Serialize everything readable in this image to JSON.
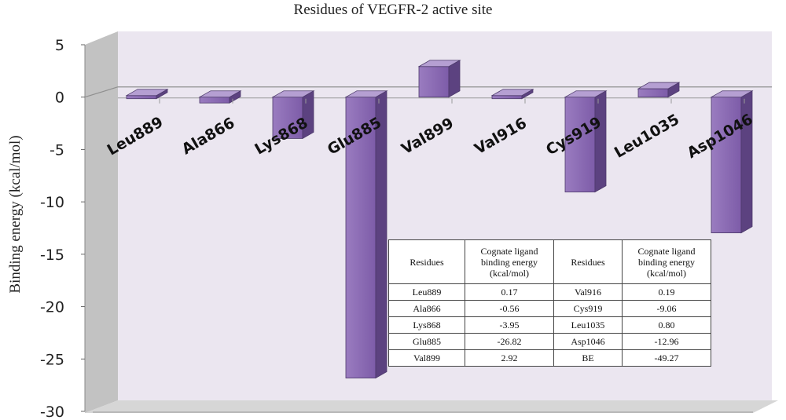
{
  "chart_data": {
    "type": "bar",
    "title": "Residues of VEGFR-2 active site",
    "xlabel": "",
    "ylabel": "Binding energy  (kcal/mol)",
    "ylim": [
      -30,
      5
    ],
    "yticks": [
      5,
      0,
      -5,
      -10,
      -15,
      -20,
      -25,
      -30
    ],
    "grid": false,
    "legend": "none",
    "style": "3d-columns",
    "bar_color": "#8a68b0",
    "categories": [
      "Leu889",
      "Ala866",
      "Lys868",
      "Glu885",
      "Val899",
      "Val916",
      "Cys919",
      "Leu1035",
      "Asp1046"
    ],
    "values": [
      0.17,
      -0.56,
      -3.95,
      -26.82,
      2.92,
      0.19,
      -9.06,
      0.8,
      -12.96
    ]
  },
  "table": {
    "headers": [
      "Residues",
      "Cognate ligand binding energy (kcal/mol)",
      "Residues",
      "Cognate ligand binding energy (kcal/mol)"
    ],
    "rows": [
      [
        "Leu889",
        "0.17",
        "Val916",
        "0.19"
      ],
      [
        "Ala866",
        "-0.56",
        "Cys919",
        "-9.06"
      ],
      [
        "Lys868",
        "-3.95",
        "Leu1035",
        "0.80"
      ],
      [
        "Glu885",
        "-26.82",
        "Asp1046",
        "-12.96"
      ],
      [
        "Val899",
        "2.92",
        "BE",
        "-49.27"
      ]
    ]
  }
}
